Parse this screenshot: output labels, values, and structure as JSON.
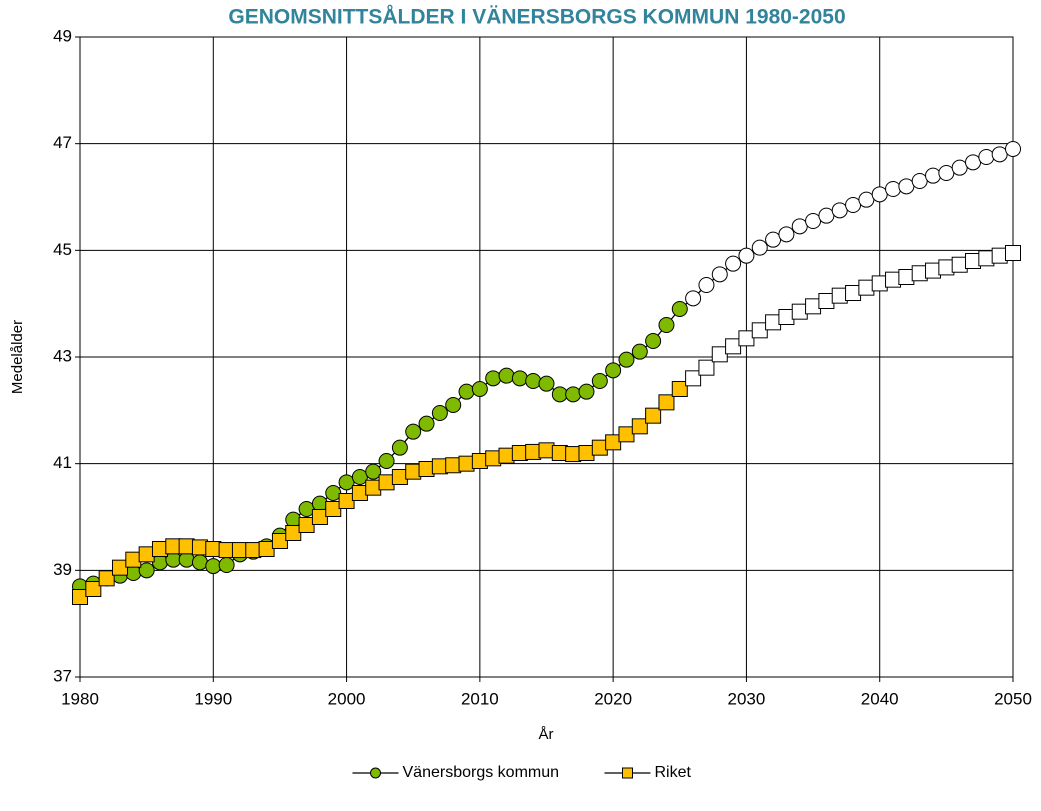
{
  "chart_data": {
    "type": "line",
    "title": "GENOMSNITTSÅLDER I VÄNERSBORGS KOMMUN 1980-2050",
    "x_label": "År",
    "y_label": "Medelålder",
    "x": [
      1980,
      1981,
      1982,
      1983,
      1984,
      1985,
      1986,
      1987,
      1988,
      1989,
      1990,
      1991,
      1992,
      1993,
      1994,
      1995,
      1996,
      1997,
      1998,
      1999,
      2000,
      2001,
      2002,
      2003,
      2004,
      2005,
      2006,
      2007,
      2008,
      2009,
      2010,
      2011,
      2012,
      2013,
      2014,
      2015,
      2016,
      2017,
      2018,
      2019,
      2020,
      2021,
      2022,
      2023,
      2024,
      2025,
      2026,
      2027,
      2028,
      2029,
      2030,
      2031,
      2032,
      2033,
      2034,
      2035,
      2036,
      2037,
      2038,
      2039,
      2040,
      2041,
      2042,
      2043,
      2044,
      2045,
      2046,
      2047,
      2048,
      2049,
      2050
    ],
    "series": [
      {
        "name": "Vänersborgs kommun",
        "color": "#7fba00",
        "marker": "circle",
        "values": [
          38.7,
          38.75,
          38.85,
          38.9,
          38.95,
          39.0,
          39.15,
          39.2,
          39.2,
          39.15,
          39.08,
          39.1,
          39.3,
          39.35,
          39.45,
          39.65,
          39.95,
          40.15,
          40.25,
          40.45,
          40.65,
          40.75,
          40.85,
          41.05,
          41.3,
          41.6,
          41.75,
          41.95,
          42.1,
          42.35,
          42.4,
          42.6,
          42.65,
          42.6,
          42.55,
          42.5,
          42.3,
          42.3,
          42.35,
          42.55,
          42.75,
          42.95,
          43.1,
          43.3,
          43.6,
          43.9,
          44.1,
          44.35,
          44.55,
          44.75,
          44.9,
          45.05,
          45.2,
          45.3,
          45.45,
          45.55,
          45.65,
          45.75,
          45.85,
          45.95,
          46.05,
          46.15,
          46.2,
          46.3,
          46.4,
          46.45,
          46.55,
          46.65,
          46.75,
          46.8,
          46.9
        ]
      },
      {
        "name": "Riket",
        "color": "#ffc000",
        "marker": "square",
        "values": [
          38.5,
          38.65,
          38.85,
          39.05,
          39.2,
          39.3,
          39.4,
          39.45,
          39.45,
          39.43,
          39.4,
          39.38,
          39.38,
          39.38,
          39.4,
          39.55,
          39.7,
          39.85,
          40.0,
          40.15,
          40.3,
          40.45,
          40.55,
          40.65,
          40.75,
          40.85,
          40.9,
          40.95,
          40.97,
          41.0,
          41.05,
          41.1,
          41.15,
          41.2,
          41.22,
          41.25,
          41.2,
          41.18,
          41.2,
          41.3,
          41.4,
          41.55,
          41.7,
          41.9,
          42.15,
          42.4,
          42.6,
          42.8,
          43.05,
          43.2,
          43.35,
          43.5,
          43.65,
          43.75,
          43.85,
          43.95,
          44.05,
          44.15,
          44.2,
          44.3,
          44.38,
          44.45,
          44.5,
          44.57,
          44.62,
          44.68,
          44.73,
          44.8,
          44.85,
          44.9,
          44.95
        ]
      }
    ],
    "projection_from": 2026,
    "projection_color": "#ffffff",
    "xlim": [
      1980,
      2050
    ],
    "xticks": [
      1980,
      1990,
      2000,
      2010,
      2020,
      2030,
      2040,
      2050
    ],
    "ylim": [
      37,
      49
    ],
    "yticks": [
      37,
      39,
      41,
      43,
      45,
      47,
      49
    ],
    "grid": true,
    "legend": "bottom"
  }
}
